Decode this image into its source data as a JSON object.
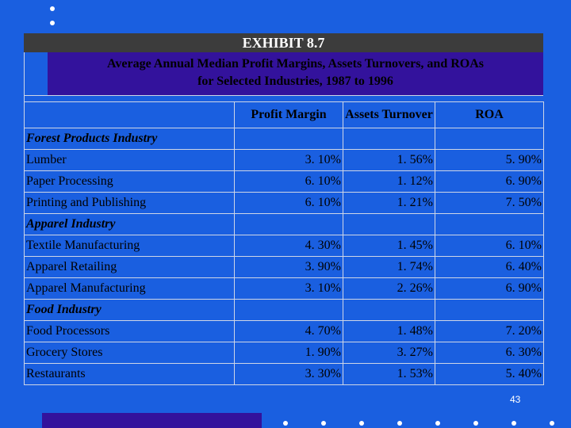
{
  "exhibit": {
    "label": "EXHIBIT 8.7",
    "title_line1": "Average Annual Median Profit Margins, Assets Turnovers, and ROAs",
    "title_line2": "for Selected Industries, 1987 to 1996"
  },
  "table": {
    "columns": [
      "Profit Margin",
      "Assets Turnover",
      "ROA"
    ],
    "groups": [
      {
        "name": "Forest Products Industry",
        "rows": [
          {
            "label": "Lumber",
            "profit_margin": "3. 10%",
            "assets_turnover": "1. 56%",
            "roa": "5. 90%"
          },
          {
            "label": "Paper Processing",
            "profit_margin": "6. 10%",
            "assets_turnover": "1. 12%",
            "roa": "6. 90%"
          },
          {
            "label": "Printing and Publishing",
            "profit_margin": "6. 10%",
            "assets_turnover": "1. 21%",
            "roa": "7. 50%"
          }
        ]
      },
      {
        "name": "Apparel Industry",
        "rows": [
          {
            "label": "Textile Manufacturing",
            "profit_margin": "4. 30%",
            "assets_turnover": "1. 45%",
            "roa": "6. 10%"
          },
          {
            "label": "Apparel Retailing",
            "profit_margin": "3. 90%",
            "assets_turnover": "1. 74%",
            "roa": "6. 40%"
          },
          {
            "label": "Apparel Manufacturing",
            "profit_margin": "3. 10%",
            "assets_turnover": "2. 26%",
            "roa": "6. 90%"
          }
        ]
      },
      {
        "name": "Food Industry",
        "rows": [
          {
            "label": "Food Processors",
            "profit_margin": "4. 70%",
            "assets_turnover": "1. 48%",
            "roa": "7. 20%"
          },
          {
            "label": "Grocery Stores",
            "profit_margin": "1. 90%",
            "assets_turnover": "3. 27%",
            "roa": "6. 30%"
          },
          {
            "label": "Restaurants",
            "profit_margin": "3. 30%",
            "assets_turnover": "1. 53%",
            "roa": "5. 40%"
          }
        ]
      }
    ]
  },
  "slide": {
    "page_number": "43",
    "background_color": "#1a5fe0",
    "accent_color": "#33129c"
  }
}
